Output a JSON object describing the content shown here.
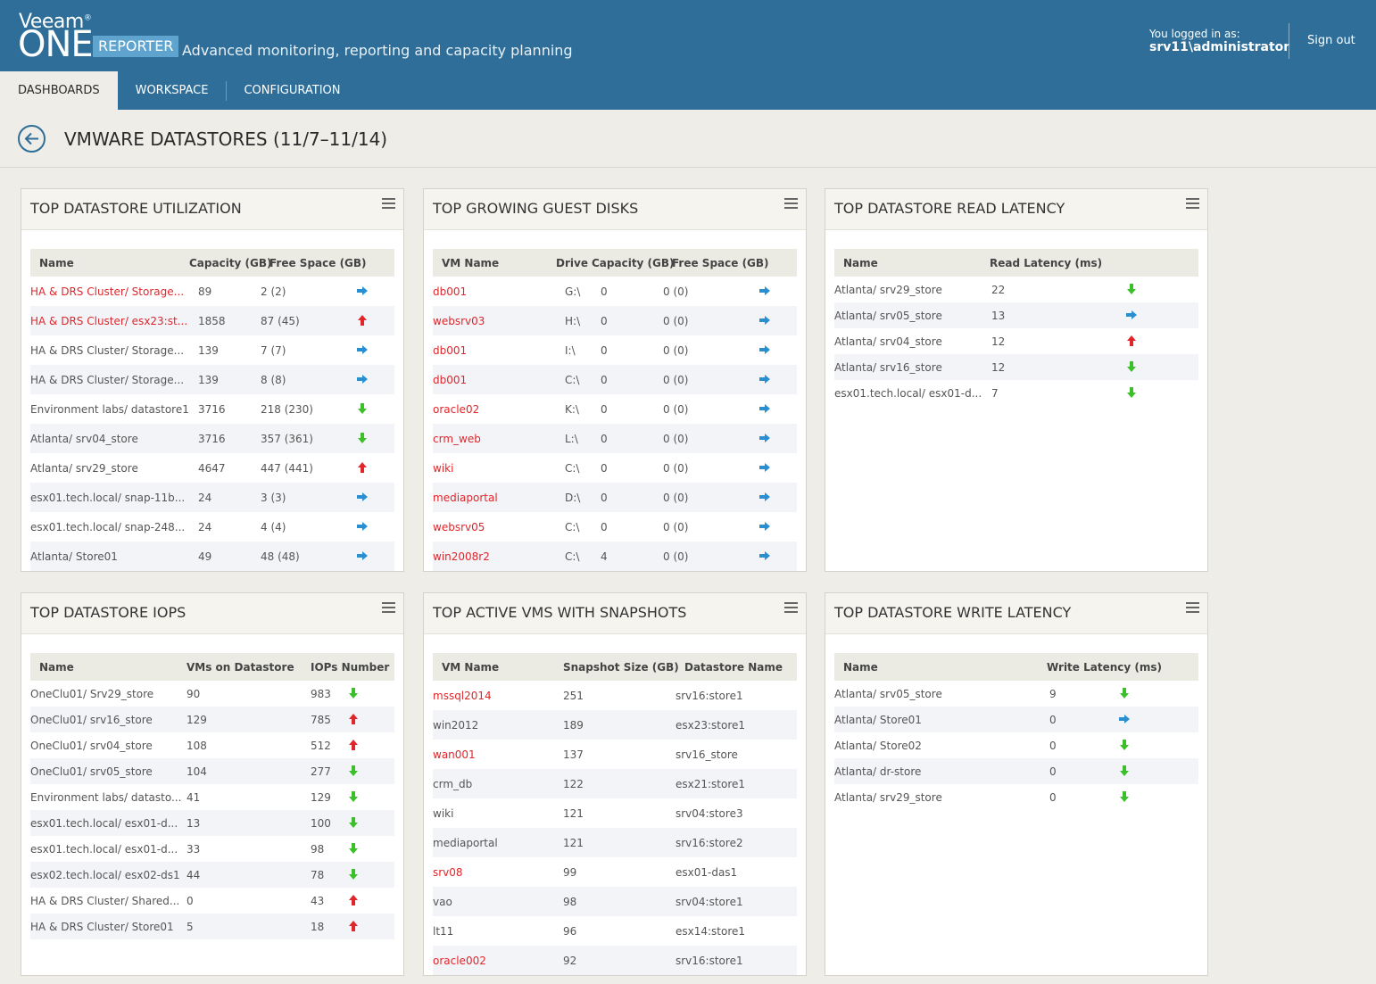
{
  "brand": {
    "veeam": "Veeam",
    "one": "ONE",
    "reporter": "REPORTER",
    "tagline": "Advanced monitoring, reporting and capacity planning"
  },
  "user": {
    "logged_label": "You logged in as:",
    "username": "srv11\\administrator",
    "signout": "Sign out"
  },
  "nav": {
    "tabs": [
      {
        "label": "DASHBOARDS"
      },
      {
        "label": "WORKSPACE"
      },
      {
        "label": "CONFIGURATION"
      }
    ]
  },
  "page": {
    "title": "VMWARE DATASTORES (11/7–11/14)"
  },
  "panels": {
    "utilization": {
      "title": "TOP DATASTORE UTILIZATION",
      "headers": [
        "Name",
        "Capacity (GB)",
        "Free Space (GB)"
      ],
      "rows": [
        {
          "name": "HA & DRS Cluster/ Storage...",
          "capacity": "89",
          "free": "2 (2)",
          "trend": "right",
          "highlight": true
        },
        {
          "name": "HA & DRS Cluster/ esx23:st...",
          "capacity": "1858",
          "free": "87 (45)",
          "trend": "up",
          "highlight": true
        },
        {
          "name": "HA & DRS Cluster/ Storage...",
          "capacity": "139",
          "free": "7 (7)",
          "trend": "right",
          "highlight": false
        },
        {
          "name": "HA & DRS Cluster/ Storage...",
          "capacity": "139",
          "free": "8 (8)",
          "trend": "right",
          "highlight": false
        },
        {
          "name": "Environment labs/ datastore1",
          "capacity": "3716",
          "free": "218 (230)",
          "trend": "down",
          "highlight": false
        },
        {
          "name": "Atlanta/ srv04_store",
          "capacity": "3716",
          "free": "357 (361)",
          "trend": "down",
          "highlight": false
        },
        {
          "name": "Atlanta/ srv29_store",
          "capacity": "4647",
          "free": "447 (441)",
          "trend": "up",
          "highlight": false
        },
        {
          "name": "esx01.tech.local/ snap-11b...",
          "capacity": "24",
          "free": "3 (3)",
          "trend": "right",
          "highlight": false
        },
        {
          "name": "esx01.tech.local/ snap-248...",
          "capacity": "24",
          "free": "4 (4)",
          "trend": "right",
          "highlight": false
        },
        {
          "name": "Atlanta/ Store01",
          "capacity": "49",
          "free": "48 (48)",
          "trend": "right",
          "highlight": false
        }
      ]
    },
    "guest_disks": {
      "title": "TOP GROWING GUEST DISKS",
      "headers": [
        "VM Name",
        "Drive",
        "Capacity (GB)",
        "Free Space (GB)"
      ],
      "rows": [
        {
          "vm": "db001",
          "drive": "G:\\",
          "capacity": "0",
          "free": "0 (0)",
          "trend": "right"
        },
        {
          "vm": "websrv03",
          "drive": "H:\\",
          "capacity": "0",
          "free": "0 (0)",
          "trend": "right"
        },
        {
          "vm": "db001",
          "drive": "I:\\",
          "capacity": "0",
          "free": "0 (0)",
          "trend": "right"
        },
        {
          "vm": "db001",
          "drive": "C:\\",
          "capacity": "0",
          "free": "0 (0)",
          "trend": "right"
        },
        {
          "vm": "oracle02",
          "drive": "K:\\",
          "capacity": "0",
          "free": "0 (0)",
          "trend": "right"
        },
        {
          "vm": "crm_web",
          "drive": "L:\\",
          "capacity": "0",
          "free": "0 (0)",
          "trend": "right"
        },
        {
          "vm": "wiki",
          "drive": "C:\\",
          "capacity": "0",
          "free": "0 (0)",
          "trend": "right"
        },
        {
          "vm": "mediaportal",
          "drive": "D:\\",
          "capacity": "0",
          "free": "0 (0)",
          "trend": "right"
        },
        {
          "vm": "websrv05",
          "drive": "C:\\",
          "capacity": "0",
          "free": "0 (0)",
          "trend": "right"
        },
        {
          "vm": "win2008r2",
          "drive": "C:\\",
          "capacity": "4",
          "free": "0 (0)",
          "trend": "right"
        }
      ]
    },
    "read_latency": {
      "title": "TOP DATASTORE READ LATENCY",
      "headers": [
        "Name",
        "Read Latency (ms)"
      ],
      "rows": [
        {
          "name": "Atlanta/ srv29_store",
          "value": "22",
          "trend": "down"
        },
        {
          "name": "Atlanta/ srv05_store",
          "value": "13",
          "trend": "right"
        },
        {
          "name": "Atlanta/ srv04_store",
          "value": "12",
          "trend": "up"
        },
        {
          "name": "Atlanta/ srv16_store",
          "value": "12",
          "trend": "down"
        },
        {
          "name": "esx01.tech.local/ esx01-d...",
          "value": "7",
          "trend": "down"
        }
      ]
    },
    "iops": {
      "title": "TOP DATASTORE IOPS",
      "headers": [
        "Name",
        "VMs on Datastore",
        "IOPs Number"
      ],
      "rows": [
        {
          "name": "OneClu01/ Srv29_store",
          "vms": "90",
          "iops": "983",
          "trend": "down"
        },
        {
          "name": "OneClu01/ srv16_store",
          "vms": "129",
          "iops": "785",
          "trend": "up"
        },
        {
          "name": "OneClu01/ srv04_store",
          "vms": "108",
          "iops": "512",
          "trend": "up"
        },
        {
          "name": "OneClu01/ srv05_store",
          "vms": "104",
          "iops": "277",
          "trend": "down"
        },
        {
          "name": "Environment labs/ datasto...",
          "vms": "41",
          "iops": "129",
          "trend": "down"
        },
        {
          "name": "esx01.tech.local/ esx01-d...",
          "vms": "13",
          "iops": "100",
          "trend": "down"
        },
        {
          "name": "esx01.tech.local/ esx01-d...",
          "vms": "33",
          "iops": "98",
          "trend": "down"
        },
        {
          "name": "esx02.tech.local/ esx02-ds1",
          "vms": "44",
          "iops": "78",
          "trend": "down"
        },
        {
          "name": "HA & DRS Cluster/ Shared...",
          "vms": "0",
          "iops": "43",
          "trend": "up"
        },
        {
          "name": "HA & DRS Cluster/ Store01",
          "vms": "5",
          "iops": "18",
          "trend": "up"
        }
      ]
    },
    "snapshots": {
      "title": "TOP ACTIVE VMS WITH SNAPSHOTS",
      "headers": [
        "VM Name",
        "Snapshot Size (GB)",
        "Datastore Name"
      ],
      "rows": [
        {
          "vm": "mssql2014",
          "size": "251",
          "datastore": "srv16:store1",
          "highlight": true
        },
        {
          "vm": "win2012",
          "size": "189",
          "datastore": "esx23:store1",
          "highlight": false
        },
        {
          "vm": "wan001",
          "size": "137",
          "datastore": "srv16_store",
          "highlight": true
        },
        {
          "vm": "crm_db",
          "size": "122",
          "datastore": "esx21:store1",
          "highlight": false
        },
        {
          "vm": "wiki",
          "size": "121",
          "datastore": "srv04:store3",
          "highlight": false
        },
        {
          "vm": "mediaportal",
          "size": "121",
          "datastore": "srv16:store2",
          "highlight": false
        },
        {
          "vm": "srv08",
          "size": "99",
          "datastore": "esx01-das1",
          "highlight": true
        },
        {
          "vm": "vao",
          "size": "98",
          "datastore": "srv04:store1",
          "highlight": false
        },
        {
          "vm": "lt11",
          "size": "96",
          "datastore": "esx14:store1",
          "highlight": false
        },
        {
          "vm": "oracle002",
          "size": "92",
          "datastore": "srv16:store1",
          "highlight": true
        }
      ]
    },
    "write_latency": {
      "title": "TOP DATASTORE WRITE LATENCY",
      "headers": [
        "Name",
        "Write Latency (ms)"
      ],
      "rows": [
        {
          "name": "Atlanta/ srv05_store",
          "value": "9",
          "trend": "down"
        },
        {
          "name": "Atlanta/ Store01",
          "value": "0",
          "trend": "right"
        },
        {
          "name": "Atlanta/ Store02",
          "value": "0",
          "trend": "down"
        },
        {
          "name": "Atlanta/ dr-store",
          "value": "0",
          "trend": "down"
        },
        {
          "name": "Atlanta/ srv29_store",
          "value": "0",
          "trend": "down"
        }
      ]
    }
  },
  "colors": {
    "header_bg": "#2e6e98",
    "link_red": "#e0262b",
    "trend_up": "#e0262b",
    "trend_down": "#3cbf2a",
    "trend_right": "#2a8fd1"
  }
}
